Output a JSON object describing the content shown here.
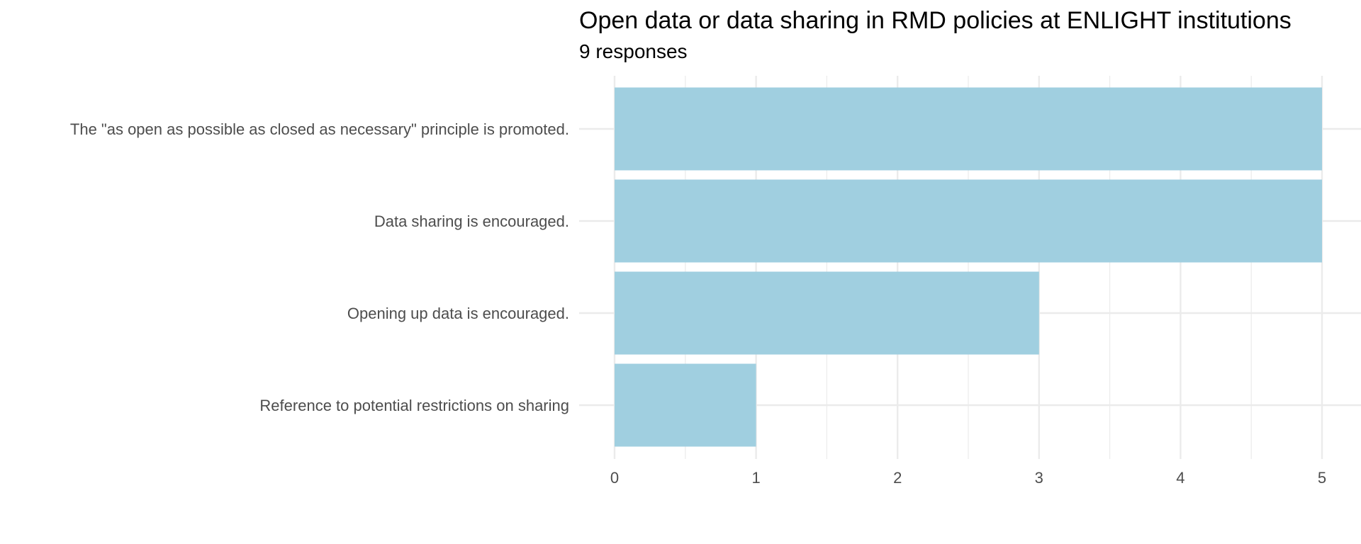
{
  "chart_data": {
    "type": "bar",
    "orientation": "horizontal",
    "title": "Open data or data sharing in RMD policies at ENLIGHT institutions",
    "subtitle": "9 responses",
    "xlabel": "",
    "ylabel": "",
    "categories": [
      "The \"as open as possible as closed as necessary\" principle is promoted.",
      "Data sharing is encouraged.",
      "Opening up data is encouraged.",
      "Reference to potential restrictions on sharing"
    ],
    "values": [
      5,
      5,
      3,
      1
    ],
    "xlim": [
      0,
      5
    ],
    "x_ticks": [
      "0",
      "1",
      "2",
      "3",
      "4",
      "5"
    ],
    "grid": true,
    "legend": "none",
    "bar_color": "#a0cfe0",
    "grid_color": "#ebebeb"
  }
}
